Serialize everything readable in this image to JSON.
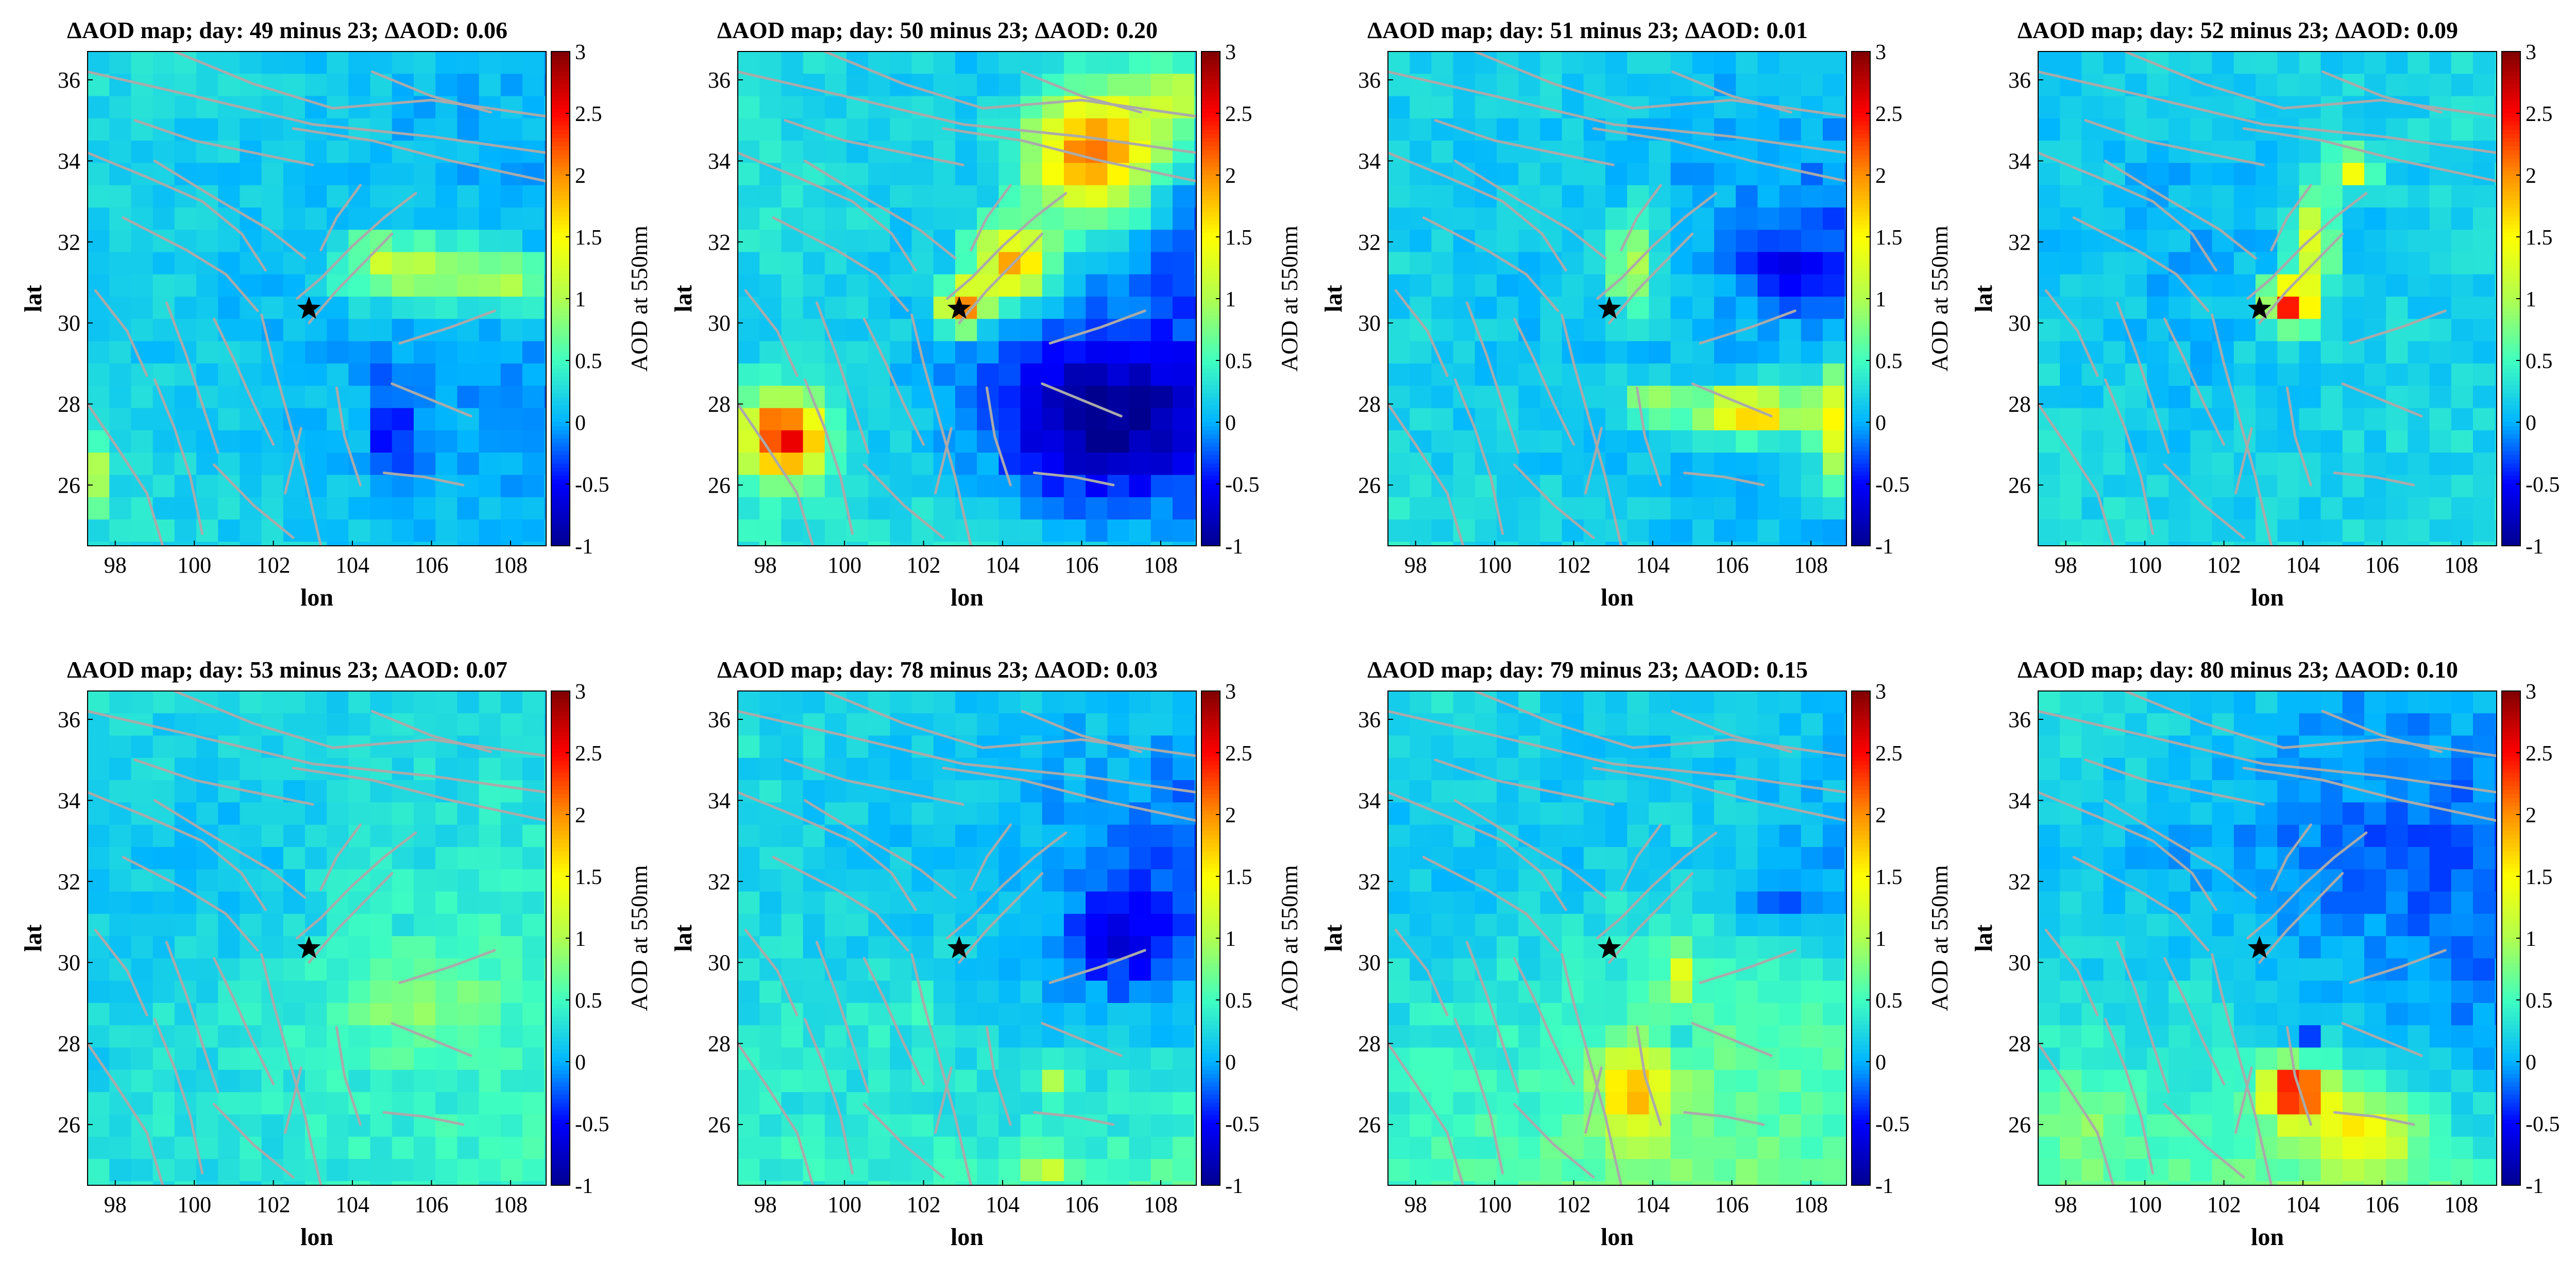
{
  "figure": {
    "colorbar_label": "AOD at 550nm",
    "colormap": [
      "#00008f",
      "#0000ff",
      "#00b4ff",
      "#40ffbf",
      "#b0ff4f",
      "#ffff00",
      "#ff8f00",
      "#ff0000",
      "#800000"
    ],
    "fault_color": "#aaaaaa",
    "epicenter_marker": "black-star",
    "epicenter": {
      "lon": 102.9,
      "lat": 30.35
    }
  },
  "chart_data": [
    {
      "type": "heatmap",
      "title": "ΔAOD map; day: 49 minus 23; ΔAOD: 0.06",
      "xlabel": "lon",
      "ylabel": "lat",
      "colorbar_label": "AOD at 550nm",
      "xlim": [
        97.3,
        108.9
      ],
      "ylim": [
        24.5,
        36.7
      ],
      "clim": [
        -1,
        3
      ],
      "xticks": [
        "98",
        "100",
        "102",
        "104",
        "106",
        "108"
      ],
      "yticks": [
        "26",
        "28",
        "30",
        "32",
        "34",
        "36"
      ],
      "cticks": [
        "-1",
        "-0.5",
        "0",
        "0.5",
        "1",
        "1.5",
        "2",
        "2.5",
        "3"
      ],
      "grid": false,
      "field": {
        "base": [
          [
            0.3,
            0.2,
            0.1,
            0.0
          ],
          [
            0.2,
            0.1,
            0.05,
            0.0
          ],
          [
            0.2,
            0.1,
            0.0,
            -0.1
          ],
          [
            0.3,
            0.2,
            0.1,
            0.0
          ]
        ],
        "hotspots": [
          {
            "lon": 105.6,
            "lat": 31.3,
            "rlon": 1.8,
            "rlat": 0.8,
            "amp": 1.1
          },
          {
            "lon": 108.0,
            "lat": 31.0,
            "rlon": 1.0,
            "rlat": 0.8,
            "amp": 0.8
          },
          {
            "lon": 105.0,
            "lat": 27.2,
            "rlon": 0.6,
            "rlat": 1.5,
            "amp": -0.5
          },
          {
            "lon": 97.5,
            "lat": 26.2,
            "rlon": 0.4,
            "rlat": 0.8,
            "amp": 0.8
          },
          {
            "lon": 104.5,
            "lat": 31.8,
            "rlon": 0.3,
            "rlat": 0.3,
            "amp": 1.2
          }
        ]
      }
    },
    {
      "type": "heatmap",
      "title": "ΔAOD map; day: 50 minus 23; ΔAOD: 0.20",
      "xlabel": "lon",
      "ylabel": "lat",
      "colorbar_label": "AOD at 550nm",
      "xlim": [
        97.3,
        108.9
      ],
      "ylim": [
        24.5,
        36.7
      ],
      "clim": [
        -1,
        3
      ],
      "xticks": [
        "98",
        "100",
        "102",
        "104",
        "106",
        "108"
      ],
      "yticks": [
        "26",
        "28",
        "30",
        "32",
        "34",
        "36"
      ],
      "cticks": [
        "-1",
        "-0.5",
        "0",
        "0.5",
        "1",
        "1.5",
        "2",
        "2.5",
        "3"
      ],
      "grid": false,
      "field": {
        "base": [
          [
            0.3,
            0.2,
            0.1,
            0.1
          ],
          [
            0.3,
            0.2,
            0.0,
            -0.2
          ],
          [
            0.2,
            0.1,
            -0.2,
            -0.3
          ],
          [
            0.4,
            0.3,
            0.2,
            0.0
          ]
        ],
        "hotspots": [
          {
            "lon": 106.3,
            "lat": 34.2,
            "rlon": 1.6,
            "rlat": 1.6,
            "amp": 2.2
          },
          {
            "lon": 104.3,
            "lat": 31.5,
            "rlon": 1.0,
            "rlat": 1.0,
            "amp": 1.8
          },
          {
            "lon": 103.0,
            "lat": 30.4,
            "rlon": 0.6,
            "rlat": 0.6,
            "amp": 2.0
          },
          {
            "lon": 98.5,
            "lat": 27.2,
            "rlon": 1.0,
            "rlat": 1.0,
            "amp": 2.4
          },
          {
            "lon": 106.5,
            "lat": 27.5,
            "rlon": 2.5,
            "rlat": 1.8,
            "amp": -0.9
          },
          {
            "lon": 108.3,
            "lat": 35.5,
            "rlon": 0.8,
            "rlat": 1.0,
            "amp": 1.0
          }
        ]
      }
    },
    {
      "type": "heatmap",
      "title": "ΔAOD map; day: 51 minus 23; ΔAOD: 0.01",
      "xlabel": "lon",
      "ylabel": "lat",
      "colorbar_label": "AOD at 550nm",
      "xlim": [
        97.3,
        108.9
      ],
      "ylim": [
        24.5,
        36.7
      ],
      "clim": [
        -1,
        3
      ],
      "xticks": [
        "98",
        "100",
        "102",
        "104",
        "106",
        "108"
      ],
      "yticks": [
        "26",
        "28",
        "30",
        "32",
        "34",
        "36"
      ],
      "cticks": [
        "-1",
        "-0.5",
        "0",
        "0.5",
        "1",
        "1.5",
        "2",
        "2.5",
        "3"
      ],
      "grid": false,
      "field": {
        "base": [
          [
            0.2,
            0.2,
            0.1,
            0.1
          ],
          [
            0.2,
            0.1,
            0.0,
            -0.2
          ],
          [
            0.2,
            0.1,
            0.1,
            0.0
          ],
          [
            0.3,
            0.2,
            0.1,
            0.0
          ]
        ],
        "hotspots": [
          {
            "lon": 106.5,
            "lat": 27.8,
            "rlon": 1.4,
            "rlat": 0.6,
            "amp": 1.8
          },
          {
            "lon": 108.5,
            "lat": 27.5,
            "rlon": 0.5,
            "rlat": 1.5,
            "amp": 1.3
          },
          {
            "lon": 103.5,
            "lat": 31.5,
            "rlon": 0.6,
            "rlat": 1.2,
            "amp": 1.1
          },
          {
            "lon": 104.0,
            "lat": 28.0,
            "rlon": 0.8,
            "rlat": 0.4,
            "amp": 1.0
          },
          {
            "lon": 107.5,
            "lat": 31.3,
            "rlon": 1.5,
            "rlat": 0.8,
            "amp": -0.5
          }
        ]
      }
    },
    {
      "type": "heatmap",
      "title": "ΔAOD map; day: 52 minus 23; ΔAOD: 0.09",
      "xlabel": "lon",
      "ylabel": "lat",
      "colorbar_label": "AOD at 550nm",
      "xlim": [
        97.3,
        108.9
      ],
      "ylim": [
        24.5,
        36.7
      ],
      "clim": [
        -1,
        3
      ],
      "xticks": [
        "98",
        "100",
        "102",
        "104",
        "106",
        "108"
      ],
      "yticks": [
        "26",
        "28",
        "30",
        "32",
        "34",
        "36"
      ],
      "cticks": [
        "-1",
        "-0.5",
        "0",
        "0.5",
        "1",
        "1.5",
        "2",
        "2.5",
        "3"
      ],
      "grid": false,
      "field": {
        "base": [
          [
            0.2,
            0.2,
            0.2,
            0.3
          ],
          [
            0.1,
            0.0,
            0.1,
            0.2
          ],
          [
            0.2,
            0.1,
            0.2,
            0.2
          ],
          [
            0.3,
            0.2,
            0.2,
            0.3
          ]
        ],
        "hotspots": [
          {
            "lon": 103.7,
            "lat": 30.5,
            "rlon": 0.6,
            "rlat": 0.6,
            "amp": 2.3
          },
          {
            "lon": 104.3,
            "lat": 32.0,
            "rlon": 0.5,
            "rlat": 1.2,
            "amp": 1.3
          },
          {
            "lon": 105.3,
            "lat": 33.8,
            "rlon": 0.5,
            "rlat": 0.5,
            "amp": 1.4
          }
        ]
      }
    },
    {
      "type": "heatmap",
      "title": "ΔAOD map; day: 53 minus 23; ΔAOD: 0.07",
      "xlabel": "lon",
      "ylabel": "lat",
      "colorbar_label": "AOD at 550nm",
      "xlim": [
        97.3,
        108.9
      ],
      "ylim": [
        24.5,
        36.7
      ],
      "clim": [
        -1,
        3
      ],
      "xticks": [
        "98",
        "100",
        "102",
        "104",
        "106",
        "108"
      ],
      "yticks": [
        "26",
        "28",
        "30",
        "32",
        "34",
        "36"
      ],
      "cticks": [
        "-1",
        "-0.5",
        "0",
        "0.5",
        "1",
        "1.5",
        "2",
        "2.5",
        "3"
      ],
      "grid": false,
      "field": {
        "base": [
          [
            0.3,
            0.2,
            0.2,
            0.2
          ],
          [
            0.1,
            0.1,
            0.3,
            0.4
          ],
          [
            0.2,
            0.3,
            0.4,
            0.5
          ],
          [
            0.3,
            0.3,
            0.4,
            0.5
          ]
        ],
        "hotspots": [
          {
            "lon": 105.5,
            "lat": 29.0,
            "rlon": 2.0,
            "rlat": 1.2,
            "amp": 0.4
          },
          {
            "lon": 104.0,
            "lat": 32.0,
            "rlon": 0.6,
            "rlat": 0.8,
            "amp": 0.3
          }
        ]
      }
    },
    {
      "type": "heatmap",
      "title": "ΔAOD map; day: 78 minus 23; ΔAOD: 0.03",
      "xlabel": "lon",
      "ylabel": "lat",
      "colorbar_label": "AOD at 550nm",
      "xlim": [
        97.3,
        108.9
      ],
      "ylim": [
        24.5,
        36.7
      ],
      "clim": [
        -1,
        3
      ],
      "xticks": [
        "98",
        "100",
        "102",
        "104",
        "106",
        "108"
      ],
      "yticks": [
        "26",
        "28",
        "30",
        "32",
        "34",
        "36"
      ],
      "cticks": [
        "-1",
        "-0.5",
        "0",
        "0.5",
        "1",
        "1.5",
        "2",
        "2.5",
        "3"
      ],
      "grid": false,
      "field": {
        "base": [
          [
            0.3,
            0.2,
            0.1,
            0.1
          ],
          [
            0.2,
            0.1,
            0.0,
            -0.3
          ],
          [
            0.3,
            0.3,
            0.1,
            0.1
          ],
          [
            0.4,
            0.4,
            0.5,
            0.6
          ]
        ],
        "hotspots": [
          {
            "lon": 107.0,
            "lat": 30.5,
            "rlon": 1.5,
            "rlat": 1.2,
            "amp": -0.6
          },
          {
            "lon": 105.3,
            "lat": 27.2,
            "rlon": 0.5,
            "rlat": 0.4,
            "amp": 0.9
          },
          {
            "lon": 105.0,
            "lat": 25.0,
            "rlon": 0.6,
            "rlat": 0.4,
            "amp": 0.8
          },
          {
            "lon": 101.8,
            "lat": 29.0,
            "rlon": 0.4,
            "rlat": 0.3,
            "amp": 0.6
          }
        ]
      }
    },
    {
      "type": "heatmap",
      "title": "ΔAOD map; day: 79 minus 23; ΔAOD: 0.15",
      "xlabel": "lon",
      "ylabel": "lat",
      "colorbar_label": "AOD at 550nm",
      "xlim": [
        97.3,
        108.9
      ],
      "ylim": [
        24.5,
        36.7
      ],
      "clim": [
        -1,
        3
      ],
      "xticks": [
        "98",
        "100",
        "102",
        "104",
        "106",
        "108"
      ],
      "yticks": [
        "26",
        "28",
        "30",
        "32",
        "34",
        "36"
      ],
      "cticks": [
        "-1",
        "-0.5",
        "0",
        "0.5",
        "1",
        "1.5",
        "2",
        "2.5",
        "3"
      ],
      "grid": false,
      "field": {
        "base": [
          [
            0.3,
            0.2,
            0.1,
            0.1
          ],
          [
            0.1,
            0.1,
            0.2,
            0.0
          ],
          [
            0.3,
            0.4,
            0.6,
            0.5
          ],
          [
            0.5,
            0.6,
            0.8,
            0.6
          ]
        ],
        "hotspots": [
          {
            "lon": 103.5,
            "lat": 26.8,
            "rlon": 0.8,
            "rlat": 1.0,
            "amp": 1.4
          },
          {
            "lon": 104.7,
            "lat": 29.7,
            "rlon": 0.4,
            "rlat": 0.6,
            "amp": 1.0
          },
          {
            "lon": 104.9,
            "lat": 28.0,
            "rlon": 0.2,
            "rlat": 0.2,
            "amp": -1.2
          },
          {
            "lon": 107.5,
            "lat": 31.5,
            "rlon": 1.5,
            "rlat": 0.8,
            "amp": -0.4
          }
        ]
      }
    },
    {
      "type": "heatmap",
      "title": "ΔAOD map; day: 80 minus 23; ΔAOD: 0.10",
      "xlabel": "lon",
      "ylabel": "lat",
      "colorbar_label": "AOD at 550nm",
      "xlim": [
        97.3,
        108.9
      ],
      "ylim": [
        24.5,
        36.7
      ],
      "clim": [
        -1,
        3
      ],
      "xticks": [
        "98",
        "100",
        "102",
        "104",
        "106",
        "108"
      ],
      "yticks": [
        "26",
        "28",
        "30",
        "32",
        "34",
        "36"
      ],
      "cticks": [
        "-1",
        "-0.5",
        "0",
        "0.5",
        "1",
        "1.5",
        "2",
        "2.5",
        "3"
      ],
      "grid": false,
      "field": {
        "base": [
          [
            0.3,
            0.2,
            0.0,
            0.0
          ],
          [
            0.1,
            0.0,
            -0.2,
            -0.3
          ],
          [
            0.3,
            0.3,
            0.1,
            -0.1
          ],
          [
            0.6,
            0.6,
            0.8,
            0.5
          ]
        ],
        "hotspots": [
          {
            "lon": 103.8,
            "lat": 26.8,
            "rlon": 0.8,
            "rlat": 0.7,
            "amp": 2.3
          },
          {
            "lon": 105.5,
            "lat": 25.8,
            "rlon": 1.2,
            "rlat": 1.0,
            "amp": 1.0
          },
          {
            "lon": 104.0,
            "lat": 28.0,
            "rlon": 0.3,
            "rlat": 0.3,
            "amp": -0.9
          },
          {
            "lon": 98.5,
            "lat": 26.0,
            "rlon": 1.0,
            "rlat": 1.0,
            "amp": 0.4
          }
        ]
      }
    }
  ],
  "fault_lines": [
    [
      [
        97.3,
        36.2
      ],
      [
        100,
        35.6
      ],
      [
        103,
        34.9
      ],
      [
        106,
        34.6
      ],
      [
        108.9,
        34.2
      ]
    ],
    [
      [
        99.5,
        36.7
      ],
      [
        101.5,
        35.9
      ],
      [
        103.5,
        35.3
      ],
      [
        106,
        35.5
      ],
      [
        108.9,
        35.1
      ]
    ],
    [
      [
        102.5,
        34.8
      ],
      [
        104.5,
        34.5
      ],
      [
        106.5,
        34.0
      ],
      [
        108.9,
        33.5
      ]
    ],
    [
      [
        104.5,
        36.2
      ],
      [
        106,
        35.6
      ],
      [
        107.5,
        35.2
      ]
    ],
    [
      [
        98.5,
        35.0
      ],
      [
        100,
        34.5
      ],
      [
        101.5,
        34.2
      ],
      [
        103,
        33.9
      ]
    ],
    [
      [
        97.3,
        34.2
      ],
      [
        98.8,
        33.6
      ],
      [
        100.2,
        33.0
      ],
      [
        101.2,
        32.2
      ],
      [
        101.8,
        31.3
      ]
    ],
    [
      [
        98.2,
        32.6
      ],
      [
        99.8,
        31.8
      ],
      [
        100.8,
        31.2
      ],
      [
        101.6,
        30.3
      ]
    ],
    [
      [
        99.0,
        34.0
      ],
      [
        100.5,
        33.1
      ],
      [
        101.9,
        32.3
      ],
      [
        102.8,
        31.6
      ]
    ],
    [
      [
        101.7,
        30.2
      ],
      [
        102.0,
        29.0
      ],
      [
        102.4,
        27.6
      ],
      [
        102.8,
        26.2
      ],
      [
        103.2,
        24.5
      ]
    ],
    [
      [
        102.6,
        30.6
      ],
      [
        103.2,
        31.1
      ],
      [
        104.0,
        31.9
      ],
      [
        104.8,
        32.6
      ],
      [
        105.6,
        33.2
      ]
    ],
    [
      [
        102.9,
        30.0
      ],
      [
        103.6,
        30.8
      ],
      [
        104.3,
        31.5
      ],
      [
        105.0,
        32.2
      ]
    ],
    [
      [
        100.5,
        30.1
      ],
      [
        101.0,
        29.1
      ],
      [
        101.5,
        28.0
      ],
      [
        102.0,
        27.0
      ]
    ],
    [
      [
        99.3,
        30.5
      ],
      [
        99.8,
        29.2
      ],
      [
        100.2,
        28.0
      ],
      [
        100.6,
        26.8
      ]
    ],
    [
      [
        99.0,
        28.6
      ],
      [
        99.5,
        27.4
      ],
      [
        99.9,
        26.2
      ],
      [
        100.2,
        24.8
      ]
    ],
    [
      [
        97.3,
        28.0
      ],
      [
        98.0,
        27.0
      ],
      [
        98.8,
        25.8
      ],
      [
        99.2,
        24.5
      ]
    ],
    [
      [
        100.5,
        26.5
      ],
      [
        101.5,
        25.5
      ],
      [
        102.5,
        24.7
      ]
    ],
    [
      [
        103.6,
        28.4
      ],
      [
        103.8,
        27.2
      ],
      [
        104.2,
        26.0
      ]
    ],
    [
      [
        102.3,
        25.8
      ],
      [
        102.5,
        26.6
      ],
      [
        102.7,
        27.4
      ]
    ],
    [
      [
        105.0,
        28.5
      ],
      [
        106.0,
        28.1
      ],
      [
        107.0,
        27.7
      ]
    ],
    [
      [
        104.8,
        26.3
      ],
      [
        105.8,
        26.2
      ],
      [
        106.8,
        26.0
      ]
    ],
    [
      [
        105.2,
        29.5
      ],
      [
        106.5,
        29.9
      ],
      [
        107.6,
        30.3
      ]
    ],
    [
      [
        103.2,
        31.8
      ],
      [
        103.6,
        32.6
      ],
      [
        104.2,
        33.4
      ]
    ],
    [
      [
        97.5,
        30.8
      ],
      [
        98.3,
        29.8
      ],
      [
        98.8,
        28.7
      ]
    ]
  ]
}
